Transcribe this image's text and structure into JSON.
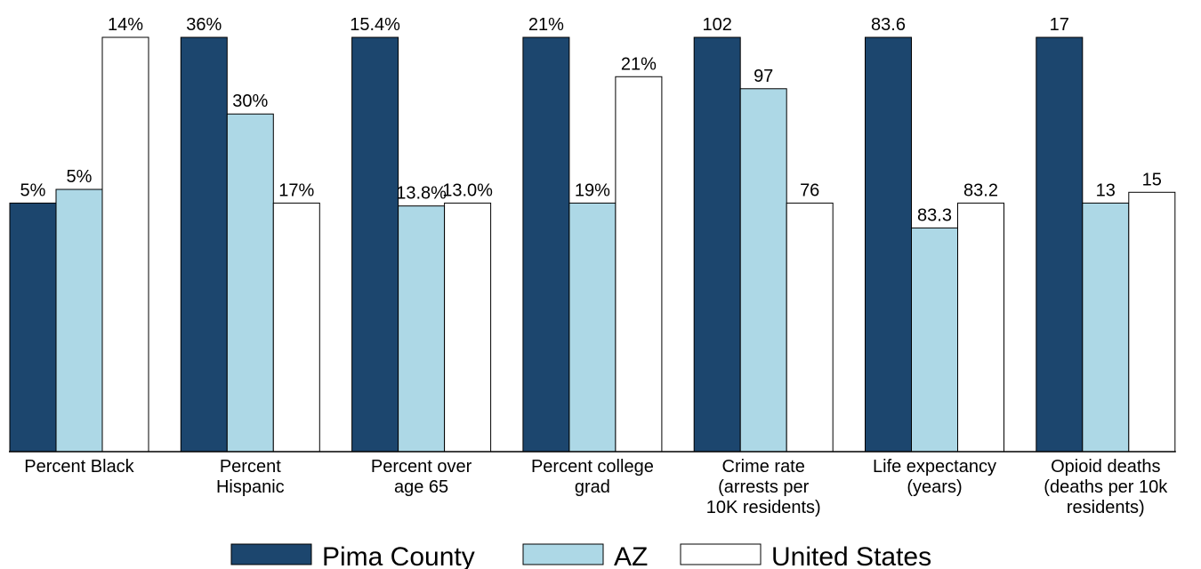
{
  "chart_data": {
    "type": "bar",
    "categories": [
      [
        "Percent Black"
      ],
      [
        "Percent",
        "Hispanic"
      ],
      [
        "Percent over",
        "age 65"
      ],
      [
        "Percent college",
        "grad"
      ],
      [
        "Crime rate",
        "(arrests per",
        "10K residents)"
      ],
      [
        "Life expectancy",
        "(years)"
      ],
      [
        "Opioid deaths",
        "(deaths per 10k",
        "residents)"
      ]
    ],
    "series": [
      {
        "name": "Pima County",
        "color": "#1c466e",
        "labels": [
          "5%",
          "36%",
          "15.4%",
          "21%",
          "102",
          "83.6",
          "17"
        ]
      },
      {
        "name": "AZ",
        "color": "#add8e6",
        "labels": [
          "5%",
          "30%",
          "13.8%",
          "19%",
          "97",
          "83.3",
          "13"
        ]
      },
      {
        "name": "United States",
        "color": "#ffffff",
        "labels": [
          "14%",
          "17%",
          "13.0%",
          "21%",
          "76",
          "83.2",
          "15"
        ]
      }
    ],
    "relative_heights": [
      [
        0.6,
        0.633,
        1.0
      ],
      [
        1.0,
        0.815,
        0.6
      ],
      [
        1.0,
        0.593,
        0.6
      ],
      [
        1.0,
        0.6,
        0.905
      ],
      [
        1.0,
        0.876,
        0.6
      ],
      [
        1.0,
        0.54,
        0.6
      ],
      [
        1.0,
        0.6,
        0.626
      ]
    ],
    "legend_position": "bottom",
    "grid": false
  }
}
